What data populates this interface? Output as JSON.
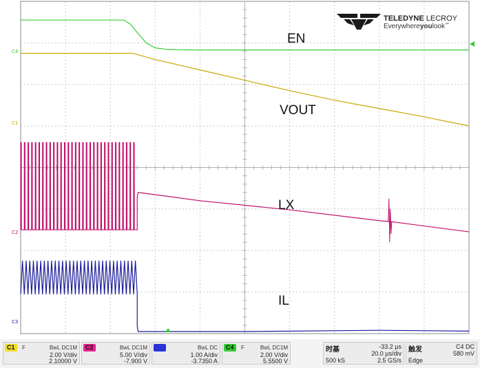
{
  "chart_data": {
    "type": "line",
    "title": "",
    "xlabel": "",
    "ylabel": "",
    "x_divisions": 10,
    "y_divisions": 8,
    "xlim_div": [
      0,
      10
    ],
    "grid": true,
    "series": [
      {
        "name": "EN",
        "channel": "C4",
        "color": "#33cc33",
        "x": [
          0,
          2.3,
          2.45,
          2.6,
          2.8,
          3.0,
          3.3,
          3.8,
          4.0,
          5.0,
          10
        ],
        "y": [
          7.55,
          7.55,
          7.45,
          7.25,
          7.0,
          6.88,
          6.84,
          6.83,
          6.83,
          6.83,
          6.83
        ]
      },
      {
        "name": "VOUT",
        "channel": "C1",
        "color": "#c8a800",
        "x": [
          0,
          2.5,
          3.0,
          4.0,
          5.0,
          6.0,
          7.0,
          8.0,
          9.0,
          10
        ],
        "y": [
          6.75,
          6.75,
          6.6,
          6.35,
          6.1,
          5.85,
          5.62,
          5.42,
          5.22,
          5.0
        ]
      },
      {
        "name": "LX",
        "channel": "C2",
        "color": "#c0106a",
        "switching_until": 2.6,
        "high": 4.6,
        "low": 2.5,
        "x": [
          2.6,
          2.62,
          4.0,
          6.0,
          8.0,
          8.2,
          8.3,
          10
        ],
        "y": [
          3.3,
          3.4,
          3.2,
          2.98,
          2.72,
          2.7,
          2.69,
          2.45
        ]
      },
      {
        "name": "IL",
        "channel": "C3",
        "color": "#1a1a9a",
        "switching_until": 2.6,
        "high": 1.75,
        "low": 0.95,
        "x": [
          2.6,
          2.62,
          5.0,
          8.0,
          10
        ],
        "y": [
          0.18,
          0.05,
          0.05,
          0.08,
          0.06
        ]
      }
    ],
    "annotations": [
      "EN",
      "VOUT",
      "LX",
      "IL"
    ]
  },
  "annotations": {
    "en": "EN",
    "vout": "VOUT",
    "lx": "LX",
    "il": "IL"
  },
  "channel_tags": {
    "c4": "C4",
    "c1": "C1",
    "c2": "C2",
    "c3": "C3"
  },
  "colors": {
    "c1": "#f0dc28",
    "c2": "#e8208c",
    "c3": "#2a32d8",
    "c4": "#33cc33",
    "grid": "#c8c8c8",
    "frame": "#8a8a8a"
  },
  "logo": {
    "name_bold": "TELEDYNE",
    "name_rest": " LECROY",
    "tag_a": "Everywhere",
    "tag_b": "you",
    "tag_c": "look",
    "tm": "™"
  },
  "footer": {
    "ch1": {
      "tag": "C1",
      "flag": "F",
      "coupling": "BwL DC1M",
      "scale": "2.00 V/div",
      "offset": "2.10000 V"
    },
    "ch2": {
      "tag": "C2",
      "coupling": "BwL DC1M",
      "scale": "5.00 V/div",
      "offset": "-7.900 V"
    },
    "ch3": {
      "tag": "C3",
      "coupling": "BwL DC",
      "scale": "1.00 A/div",
      "offset": "-3.7350 A"
    },
    "ch4": {
      "tag": "C4",
      "flag": "F",
      "coupling": "BwL DC1M",
      "scale": "2.00 V/div",
      "offset": "5.5500 V"
    },
    "timebase": {
      "title": "时基",
      "delay": "-33.2 µs",
      "per_div": "20.0 µs/div",
      "samples": "500 kS",
      "rate": "2.5 GS/s"
    },
    "trigger": {
      "title": "触发",
      "source": "C4 DC",
      "level": "580 mV",
      "mode": "Edge"
    }
  }
}
